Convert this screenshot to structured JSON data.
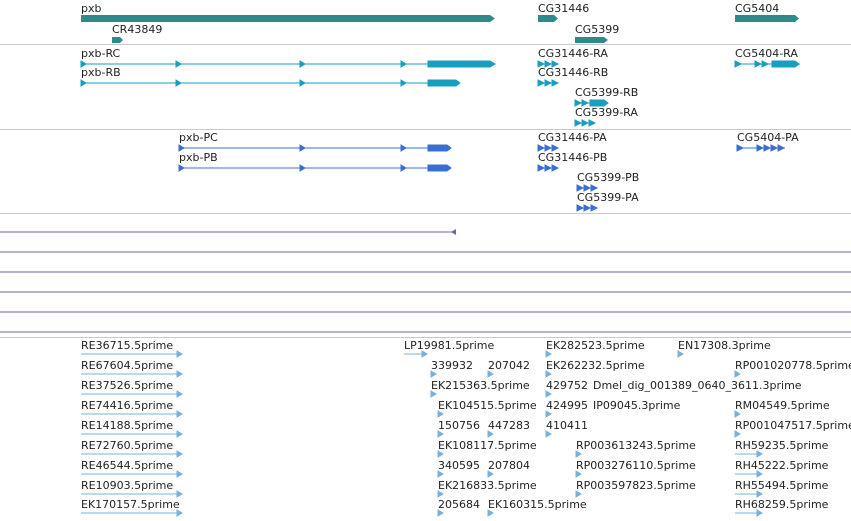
{
  "colors": {
    "gene": "#2e8b8b",
    "rna": "#1a9ec0",
    "protein": "#3a6fd0",
    "est_line": "#7a5fa8",
    "est": "#7bb1d9",
    "separator": "#c9c9c9"
  },
  "genes": [
    {
      "label": "pxb"
    },
    {
      "label": "CR43849"
    },
    {
      "label": "CG31446"
    },
    {
      "label": "CG5399"
    },
    {
      "label": "CG5404"
    }
  ],
  "transcripts": [
    {
      "label": "pxb-RC"
    },
    {
      "label": "pxb-RB"
    },
    {
      "label": "CG31446-RA"
    },
    {
      "label": "CG31446-RB"
    },
    {
      "label": "CG5399-RB"
    },
    {
      "label": "CG5399-RA"
    },
    {
      "label": "CG5404-RA"
    }
  ],
  "proteins": [
    {
      "label": "pxb-PC"
    },
    {
      "label": "pxb-PB"
    },
    {
      "label": "CG31446-PA"
    },
    {
      "label": "CG31446-PB"
    },
    {
      "label": "CG5399-PB"
    },
    {
      "label": "CG5399-PA"
    },
    {
      "label": "CG5404-PA"
    }
  ],
  "ests": [
    "RE36715.5prime",
    "RE67604.5prime",
    "RE37526.5prime",
    "RE74416.5prime",
    "RE14188.5prime",
    "RE72760.5prime",
    "RE46544.5prime",
    "RE10903.5prime",
    "EK170157.5prime",
    "LP19981.5prime",
    "339932",
    "207042",
    "EK215363.5prime",
    "EK104515.5prime",
    "150756",
    "447283",
    "EK108117.5prime",
    "340595",
    "207804",
    "EK216833.5prime",
    "205684",
    "EK160315.5prime",
    "EK282523.5prime",
    "EK262232.5prime",
    "429752",
    "Dmel_dig_001389_0640_3611.3prime",
    "424995",
    "IP09045.3prime",
    "410411",
    "RP003613243.5prime",
    "RP003276110.5prime",
    "RP003597823.5prime",
    "EN17308.3prime",
    "RP001020778.5prime",
    "RM04549.5prime",
    "RP001047517.5prime",
    "RH59235.5prime",
    "RH45222.5prime",
    "RH55494.5prime",
    "RH68259.5prime"
  ]
}
